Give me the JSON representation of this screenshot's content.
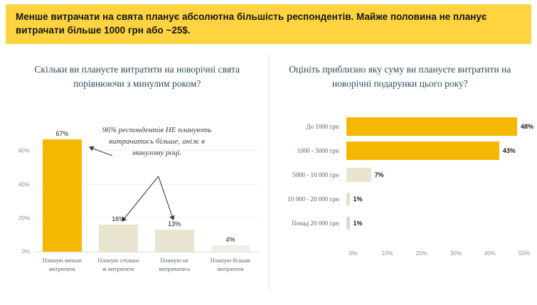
{
  "banner": {
    "text": "Менше витрачати на свята планує абсолютна більшість респондентів. Майже половина не планує витрачати більше 1000 грн або ~25$.",
    "bg_color": "#FFD440"
  },
  "colors": {
    "gold": "#F5B800",
    "beige": "#E9E4D0",
    "light_gray": "#EFEFE9",
    "title_text": "#2E4B59",
    "axis_text": "#8f8f8f"
  },
  "chart_data": [
    {
      "type": "bar",
      "orientation": "vertical",
      "title": "Скільки ви плануєте витратити на новорічні свята порівнюючи з минулим роком?",
      "categories": [
        "Планую менше витратити",
        "Планую стільки ж витратити",
        "Планую не витрачатись",
        "Планую більше витратити"
      ],
      "values": [
        67,
        16,
        13,
        4
      ],
      "labels": [
        "67%",
        "16%",
        "13%",
        "4%"
      ],
      "bar_colors": [
        "#F5B800",
        "#E9E4D0",
        "#E9E4D0",
        "#EFEFE9"
      ],
      "ylim": [
        0,
        72
      ],
      "yticks": [
        {
          "value": 0,
          "label": "0%"
        },
        {
          "value": 20,
          "label": "20%"
        },
        {
          "value": 40,
          "label": "40%"
        },
        {
          "value": 60,
          "label": "60%"
        }
      ],
      "grid": true,
      "annotation": "96% респондентів НЕ планують витрачатись більше, аніж в минулому році."
    },
    {
      "type": "bar",
      "orientation": "horizontal",
      "title": "Оцініть приблизно яку суму ви плануєте витратити на новорічні подарунки цього року?",
      "categories": [
        "До 1000 грн",
        "1000 - 5000 грн",
        "5000 - 10 000 грн",
        "10 000 - 20 000 грн",
        "Понад 20 000 грн"
      ],
      "values": [
        48,
        43,
        7,
        1,
        1
      ],
      "labels": [
        "48%",
        "43%",
        "7%",
        "1%",
        "1%"
      ],
      "bar_colors": [
        "#F5B800",
        "#F5B800",
        "#E9E4D0",
        "#E3DFD0",
        "#D9D9D9"
      ],
      "xlim": [
        0,
        50
      ],
      "xticks": [
        {
          "value": 0,
          "label": "0%"
        },
        {
          "value": 10,
          "label": "10%"
        },
        {
          "value": 20,
          "label": "20%"
        },
        {
          "value": 30,
          "label": "30%"
        },
        {
          "value": 40,
          "label": "40%"
        },
        {
          "value": 50,
          "label": "50%"
        }
      ]
    }
  ]
}
